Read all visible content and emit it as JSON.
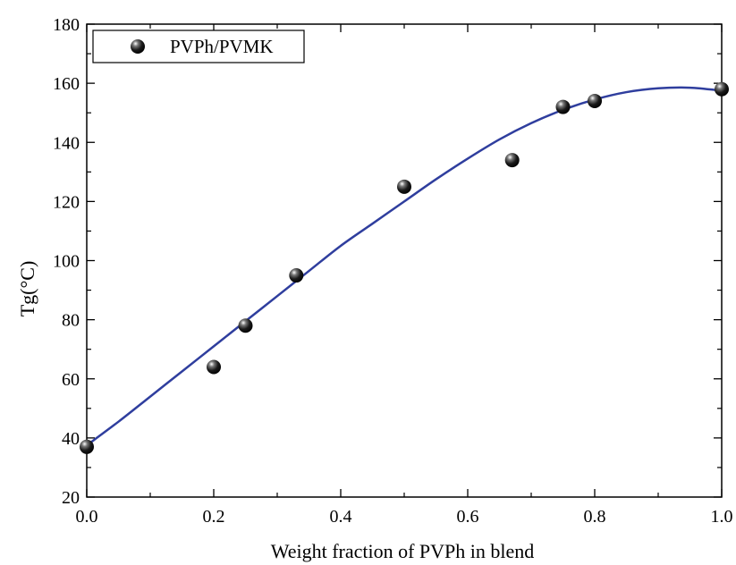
{
  "chart_data": {
    "type": "scatter",
    "xlabel": "Weight fraction of PVPh in blend",
    "ylabel": "Tg(°C)",
    "xlim": [
      0.0,
      1.0
    ],
    "ylim": [
      20,
      180
    ],
    "x_ticks": [
      0.0,
      0.2,
      0.4,
      0.6,
      0.8,
      1.0
    ],
    "x_tick_labels": [
      "0.0",
      "0.2",
      "0.4",
      "0.6",
      "0.8",
      "1.0"
    ],
    "y_ticks": [
      20,
      40,
      60,
      80,
      100,
      120,
      140,
      160,
      180
    ],
    "y_tick_labels": [
      "20",
      "40",
      "60",
      "80",
      "100",
      "120",
      "140",
      "160",
      "180"
    ],
    "legend_position": "top-left",
    "grid": false,
    "series": [
      {
        "name": "PVPh/PVMK",
        "marker": "sphere",
        "color": "#111111",
        "x": [
          0.0,
          0.2,
          0.25,
          0.33,
          0.5,
          0.67,
          0.75,
          0.8,
          1.0
        ],
        "y": [
          37,
          64,
          78,
          95,
          125,
          134,
          152,
          154,
          158
        ]
      }
    ],
    "fit_curve": {
      "color": "#2f3e9e",
      "x": [
        0.0,
        0.05,
        0.1,
        0.15,
        0.2,
        0.25,
        0.3,
        0.35,
        0.4,
        0.45,
        0.5,
        0.55,
        0.6,
        0.65,
        0.7,
        0.75,
        0.8,
        0.85,
        0.9,
        0.95,
        1.0
      ],
      "y": [
        37.5,
        45.5,
        54,
        62.5,
        71,
        79.5,
        88,
        96.5,
        105,
        112.5,
        120,
        127.5,
        134.5,
        141,
        146.5,
        151,
        154.5,
        157,
        158.3,
        158.5,
        157.5
      ]
    }
  }
}
